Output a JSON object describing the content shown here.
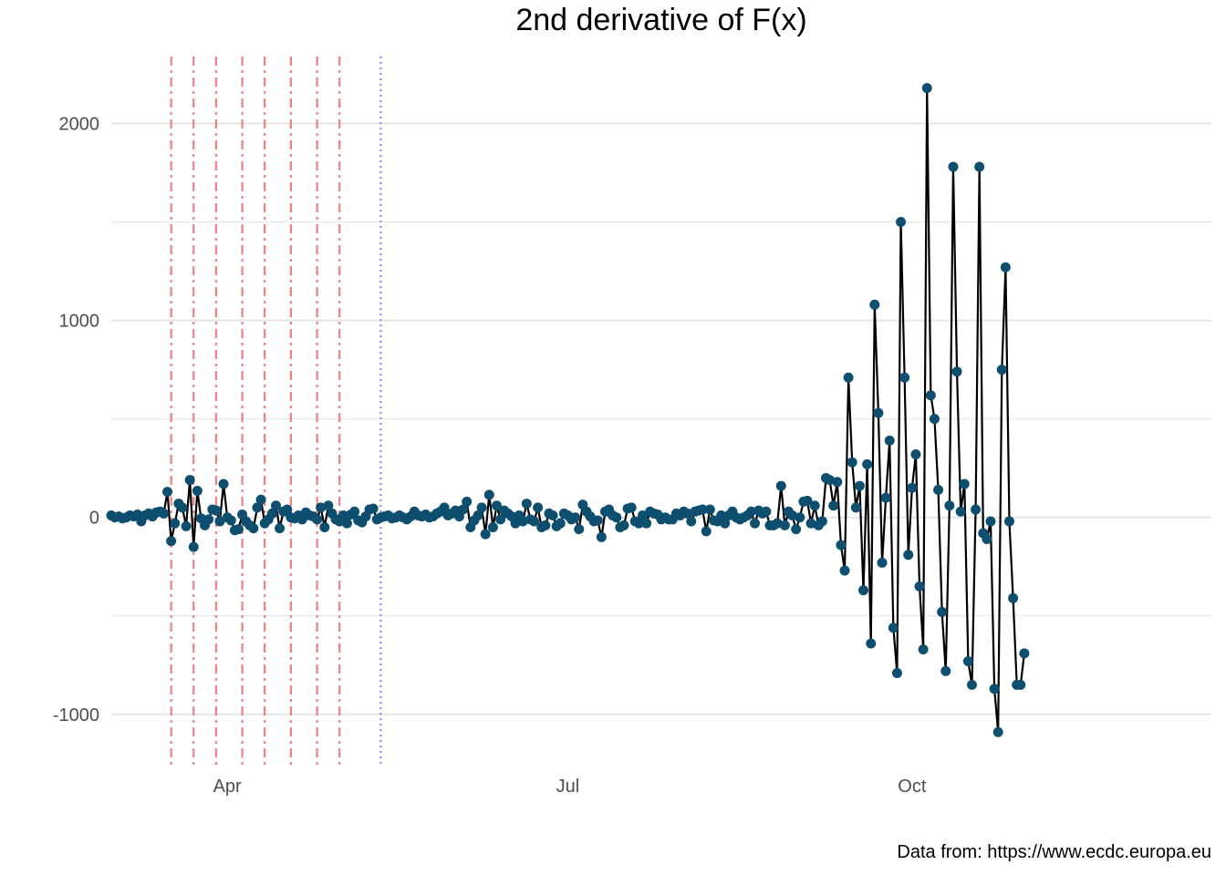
{
  "chart_data": {
    "type": "line",
    "title": "2nd derivative of F(x)",
    "xlabel": "",
    "ylabel": "",
    "caption": "Data from: https://www.ecdc.europa.eu",
    "x_axis": {
      "type": "date",
      "range": [
        "2020-03-01",
        "2020-12-20"
      ],
      "ticks": [
        {
          "date": "2020-04-01",
          "label": "Apr"
        },
        {
          "date": "2020-07-01",
          "label": "Jul"
        },
        {
          "date": "2020-10-01",
          "label": "Oct"
        }
      ]
    },
    "y_axis": {
      "range": [
        -1260,
        2340
      ],
      "ticks": [
        {
          "value": -1000,
          "label": "-1000"
        },
        {
          "value": 0,
          "label": "0"
        },
        {
          "value": 1000,
          "label": "1000"
        },
        {
          "value": 2000,
          "label": "2000"
        }
      ],
      "minor_ticks": [
        -500,
        500,
        1500
      ]
    },
    "grid": true,
    "colors": {
      "line": "#000000",
      "points": "#0e4f70",
      "red_lines": "#f08080",
      "blue_line": "#8a8af0",
      "grid": "#e5e5e5"
    },
    "vertical_lines": {
      "red_dashdot": [
        "2020-03-17",
        "2020-03-23",
        "2020-03-29",
        "2020-04-05",
        "2020-04-11",
        "2020-04-18",
        "2020-04-25",
        "2020-05-01"
      ],
      "blue_dotted": [
        "2020-05-12"
      ]
    },
    "series": [
      {
        "start_date": "2020-03-01",
        "values": [
          10,
          0,
          5,
          -5,
          0,
          10,
          5,
          15,
          -20,
          10,
          20,
          5,
          25,
          30,
          20,
          130,
          -120,
          -30,
          70,
          50,
          -45,
          190,
          -150,
          135,
          -5,
          -40,
          -10,
          40,
          35,
          -20,
          170,
          0,
          -15,
          -65,
          -60,
          15,
          -20,
          -40,
          -55,
          50,
          90,
          -30,
          -10,
          20,
          60,
          -55,
          30,
          40,
          0,
          -5,
          10,
          -10,
          25,
          10,
          5,
          -10,
          50,
          -50,
          60,
          20,
          -10,
          -20,
          10,
          -30,
          15,
          30,
          -15,
          -25,
          5,
          40,
          45,
          -10,
          0,
          5,
          10,
          -5,
          0,
          10,
          0,
          -10,
          5,
          30,
          10,
          5,
          15,
          0,
          5,
          20,
          30,
          50,
          10,
          20,
          35,
          5,
          40,
          80,
          -50,
          -15,
          10,
          50,
          -85,
          115,
          -50,
          60,
          -10,
          35,
          20,
          5,
          -30,
          10,
          -20,
          70,
          -10,
          -20,
          50,
          -50,
          -40,
          20,
          10,
          -45,
          -30,
          20,
          10,
          -10,
          0,
          -60,
          65,
          30,
          5,
          -20,
          -15,
          -100,
          30,
          40,
          10,
          0,
          -50,
          -40,
          45,
          50,
          -20,
          -30,
          10,
          -30,
          30,
          20,
          15,
          -10,
          0,
          -10,
          -10,
          20,
          10,
          30,
          20,
          -20,
          30,
          35,
          40,
          -70,
          40,
          -15,
          -20,
          10,
          -30,
          10,
          30,
          0,
          -10,
          0,
          10,
          30,
          -30,
          35,
          20,
          30,
          -40,
          -40,
          -30,
          160,
          -40,
          30,
          10,
          -60,
          0,
          80,
          85,
          -30,
          60,
          -40,
          -20,
          200,
          190,
          60,
          180,
          -140,
          -270,
          710,
          280,
          50,
          160,
          -370,
          270,
          -640,
          1080,
          530,
          -230,
          100,
          390,
          -560,
          -790,
          1500,
          710,
          -190,
          150,
          320,
          -350,
          -670,
          2180,
          620,
          500,
          140,
          -480,
          -780,
          60,
          1780,
          740,
          30,
          170,
          -730,
          -850,
          40,
          1780,
          -80,
          -110,
          -20,
          -870,
          -1090,
          750,
          1270,
          -20,
          -410,
          -850,
          -850,
          -690
        ]
      }
    ]
  }
}
